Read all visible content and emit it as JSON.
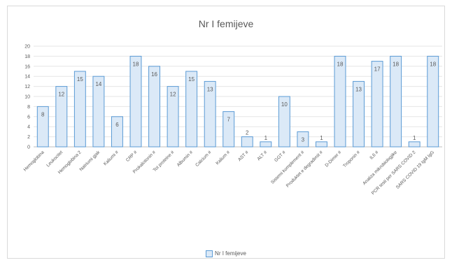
{
  "chart_data": {
    "type": "bar",
    "title": "Nr I femijeve",
    "categories": [
      "Hemoglobina",
      "Leukocitet",
      "Hemoglobina 2",
      "Natriumi gjak",
      "Kaliumi #",
      "CRP #",
      "Prokalcitonin #",
      "Tot proteine #",
      "Albumin #",
      "Calcium #",
      "Kalium #",
      "AST #",
      "ALT #",
      "GGT #",
      "Sistemi komplement #",
      "Produktet e degradimit #",
      "D-Dimer #",
      "Troponin #",
      "IL6 #",
      "Analiza mikrobiologjike",
      "PCR testi per SARS COVID 2",
      "SARS COVID 19 IgM IgG"
    ],
    "values": [
      8,
      12,
      15,
      14,
      6,
      18,
      16,
      12,
      15,
      13,
      7,
      2,
      1,
      10,
      3,
      1,
      18,
      13,
      17,
      18,
      1,
      18
    ],
    "y_ticks": [
      "0",
      "2",
      "4",
      "6",
      "8",
      "10",
      "12",
      "14",
      "16",
      "18",
      "20"
    ],
    "ylim": [
      0,
      20
    ],
    "grid": true,
    "legend": "bottom",
    "series_name": "Nr I femijeve",
    "colors": {
      "bar_fill": "#dbe9f7",
      "bar_stroke": "#5b9bd5",
      "grid": "#e6e6e6",
      "text": "#595959"
    }
  }
}
